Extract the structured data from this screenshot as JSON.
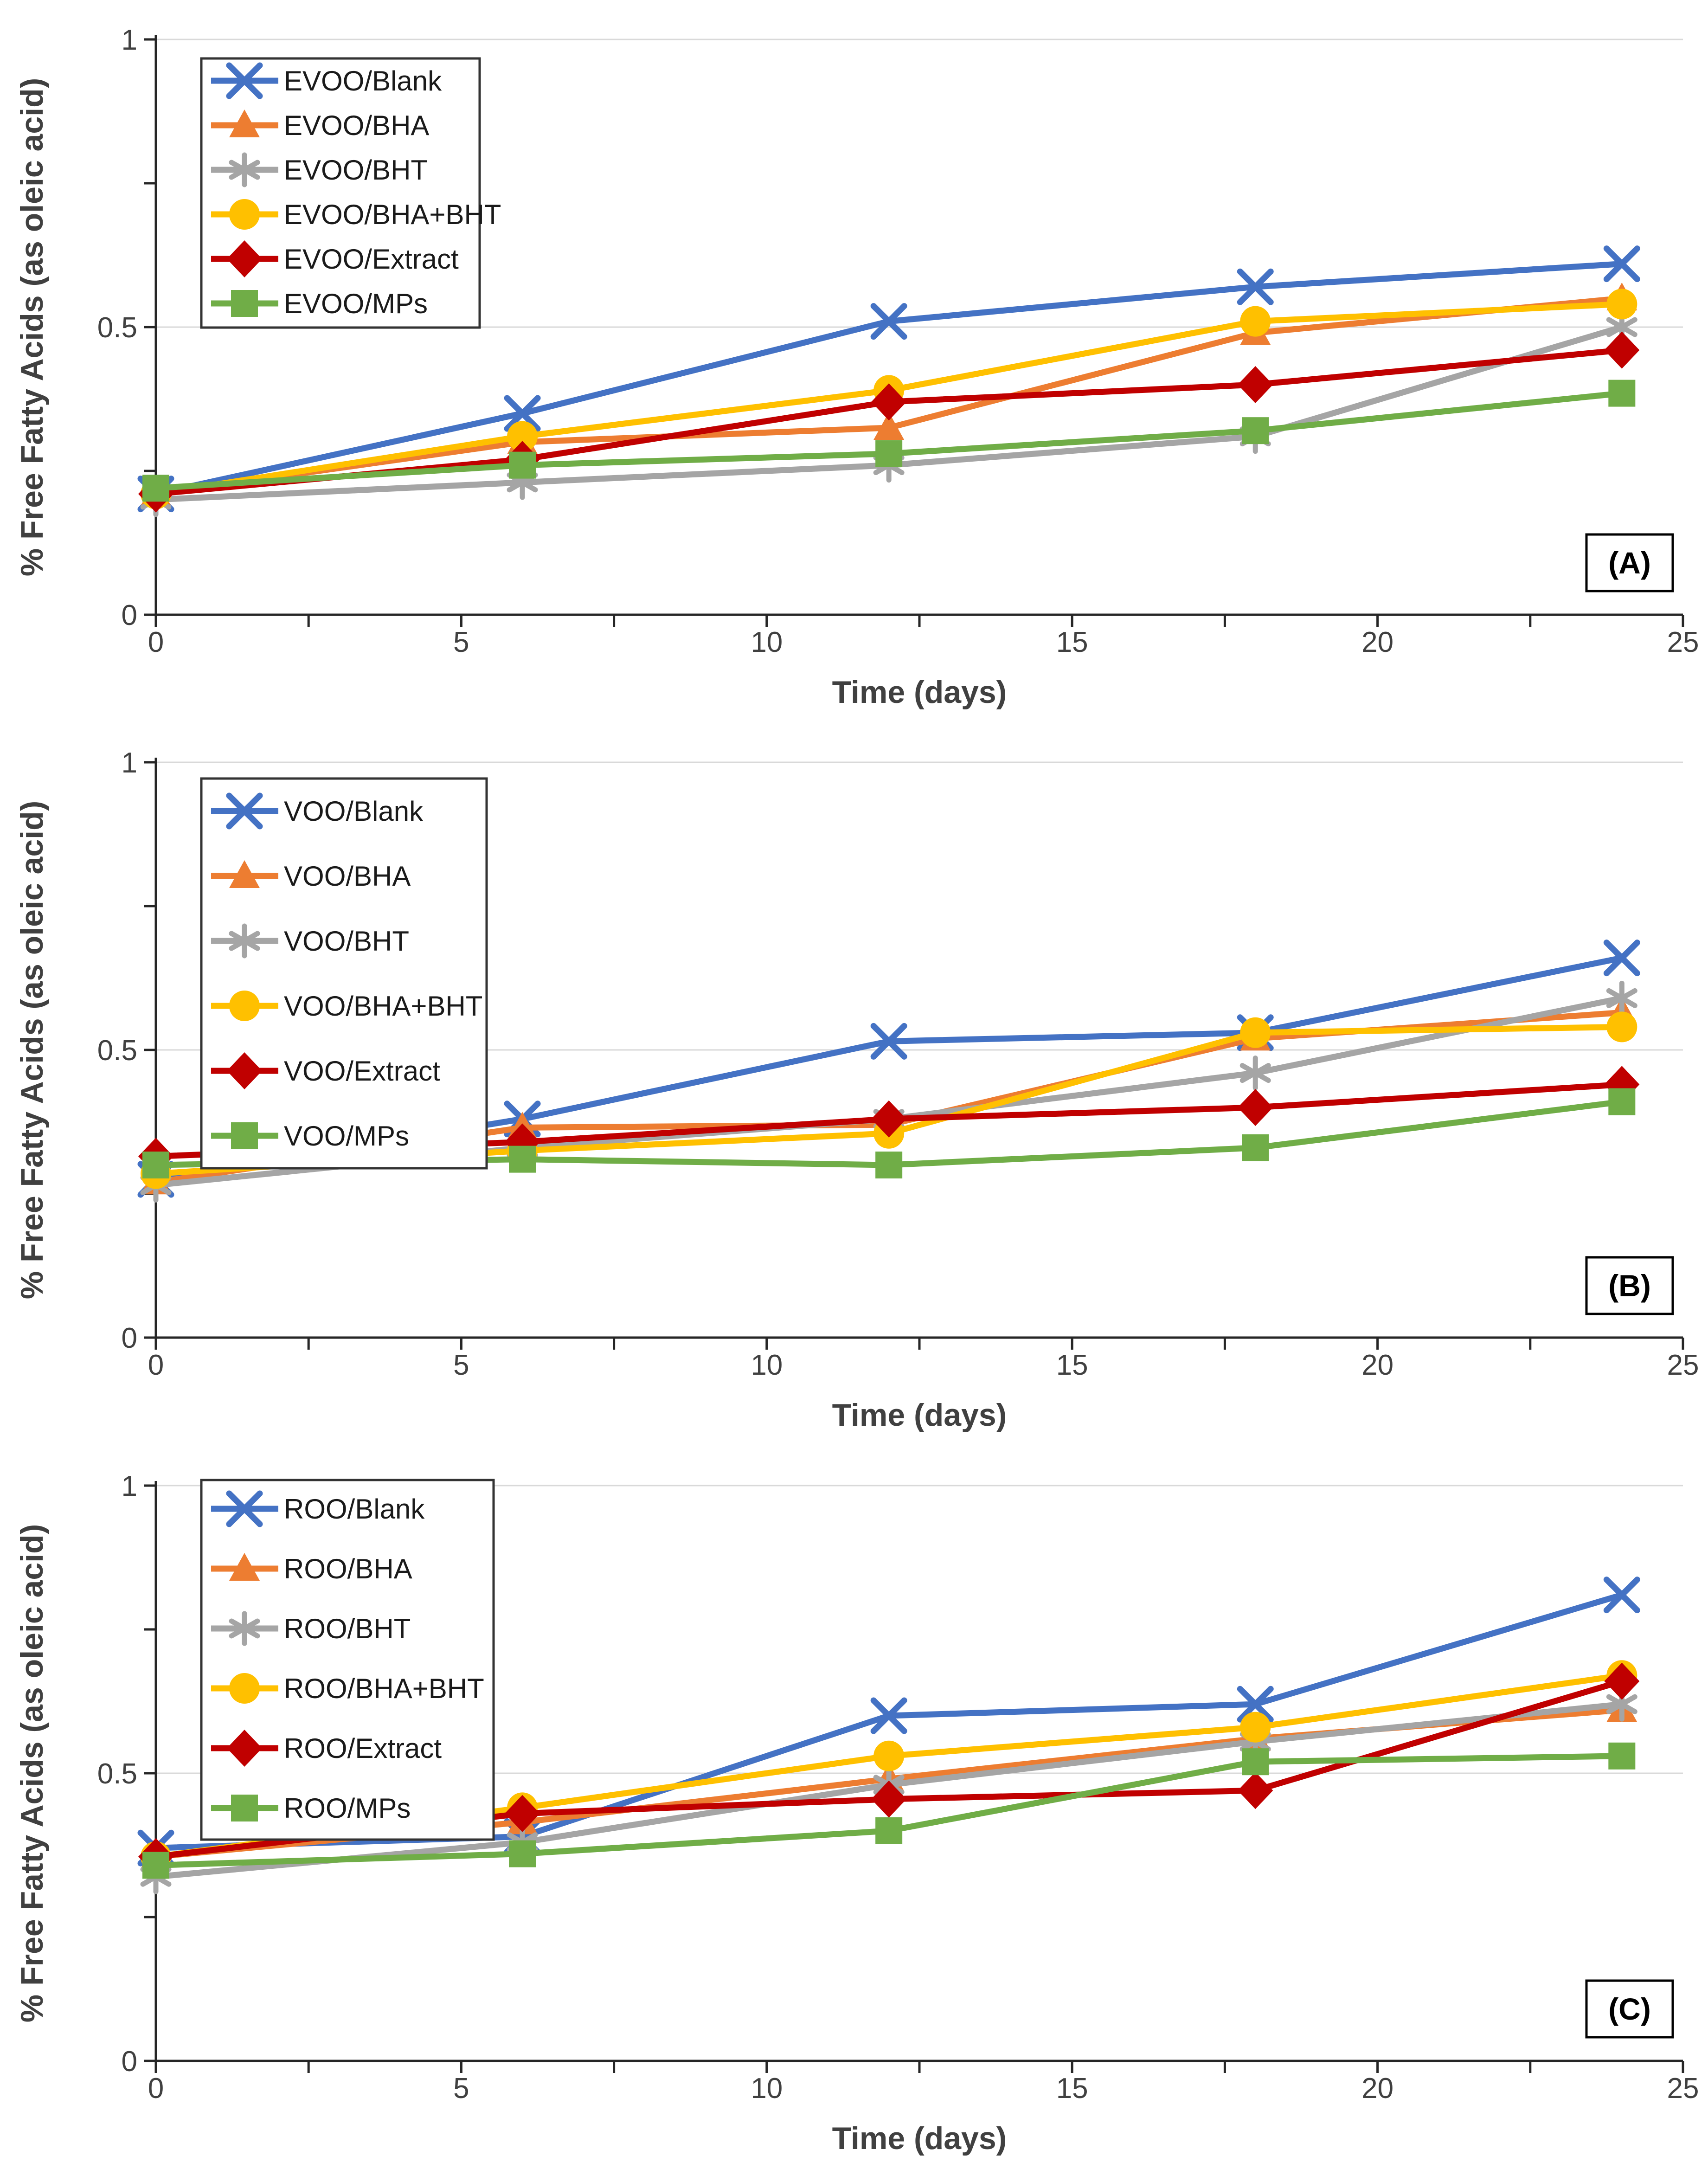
{
  "page": {
    "background": "#FFFFFF"
  },
  "shared_axis": {
    "x_title": "Time (days)",
    "y_title": "% Free Fatty Acids (as oleic acid)",
    "x_tick_labels": [
      "0",
      "5",
      "10",
      "15",
      "20",
      "25"
    ],
    "x_tick_values": [
      0,
      5,
      10,
      15,
      20,
      25
    ],
    "x_minor_tick_step": 2.5,
    "y_tick_labels": [
      "0",
      "0.5",
      "1"
    ],
    "y_tick_values": [
      0,
      0.5,
      1
    ],
    "y_minor_tick_step": 0.25,
    "xlim": [
      0,
      25
    ],
    "ylim": [
      0,
      1
    ],
    "gridlines_y": [
      0.5,
      1
    ],
    "grid_color": "#D9D9D9",
    "axis_color": "#262626",
    "text_color": "#404040",
    "legend_border_color": "#333333"
  },
  "chart_data": [
    {
      "type": "line",
      "panel_label": "(A)",
      "oil": "EVOO",
      "title": "",
      "xlabel": "Time (days)",
      "ylabel": "% Free Fatty Acids (as oleic acid)",
      "xlim": [
        0,
        25
      ],
      "ylim": [
        0,
        1
      ],
      "legend_position": "top-left",
      "grid": "horizontal",
      "x": [
        0,
        6,
        12,
        18,
        24
      ],
      "series": [
        {
          "name": "EVOO/Blank",
          "marker": "x",
          "color": "#4472C4",
          "values": [
            0.21,
            0.35,
            0.51,
            0.57,
            0.61
          ]
        },
        {
          "name": "EVOO/BHA",
          "marker": "triangle",
          "color": "#ED7D31",
          "values": [
            0.21,
            0.3,
            0.325,
            0.49,
            0.55
          ]
        },
        {
          "name": "EVOO/BHT",
          "marker": "asterisk",
          "color": "#A5A5A5",
          "values": [
            0.2,
            0.23,
            0.26,
            0.31,
            0.5
          ]
        },
        {
          "name": "EVOO/BHA+BHT",
          "marker": "circle",
          "color": "#FFC000",
          "values": [
            0.21,
            0.31,
            0.39,
            0.51,
            0.54
          ]
        },
        {
          "name": "EVOO/Extract",
          "marker": "diamond",
          "color": "#C00000",
          "values": [
            0.21,
            0.27,
            0.37,
            0.4,
            0.46
          ]
        },
        {
          "name": "EVOO/MPs",
          "marker": "square",
          "color": "#70AD47",
          "values": [
            0.22,
            0.26,
            0.28,
            0.32,
            0.385
          ]
        }
      ]
    },
    {
      "type": "line",
      "panel_label": "(B)",
      "oil": "VOO",
      "title": "",
      "xlabel": "Time (days)",
      "ylabel": "% Free Fatty Acids (as oleic acid)",
      "xlim": [
        0,
        25
      ],
      "ylim": [
        0,
        1
      ],
      "legend_position": "top-left",
      "grid": "horizontal",
      "x": [
        0,
        6,
        12,
        18,
        24
      ],
      "series": [
        {
          "name": "VOO/Blank",
          "marker": "x",
          "color": "#4472C4",
          "values": [
            0.275,
            0.38,
            0.515,
            0.53,
            0.66
          ]
        },
        {
          "name": "VOO/BHA",
          "marker": "triangle",
          "color": "#ED7D31",
          "values": [
            0.27,
            0.365,
            0.37,
            0.52,
            0.565
          ]
        },
        {
          "name": "VOO/BHT",
          "marker": "asterisk",
          "color": "#A5A5A5",
          "values": [
            0.265,
            0.33,
            0.38,
            0.46,
            0.59
          ]
        },
        {
          "name": "VOO/BHA+BHT",
          "marker": "circle",
          "color": "#FFC000",
          "values": [
            0.285,
            0.325,
            0.355,
            0.53,
            0.54
          ]
        },
        {
          "name": "VOO/Extract",
          "marker": "diamond",
          "color": "#C00000",
          "values": [
            0.315,
            0.34,
            0.38,
            0.4,
            0.44
          ]
        },
        {
          "name": "VOO/MPs",
          "marker": "square",
          "color": "#70AD47",
          "values": [
            0.3,
            0.31,
            0.3,
            0.33,
            0.41
          ]
        }
      ]
    },
    {
      "type": "line",
      "panel_label": "(C)",
      "oil": "ROO",
      "title": "",
      "xlabel": "Time (days)",
      "ylabel": "% Free Fatty Acids (as oleic acid)",
      "xlim": [
        0,
        25
      ],
      "ylim": [
        0,
        1
      ],
      "legend_position": "top-left",
      "grid": "horizontal",
      "x": [
        0,
        6,
        12,
        18,
        24
      ],
      "series": [
        {
          "name": "ROO/Blank",
          "marker": "x",
          "color": "#4472C4",
          "values": [
            0.37,
            0.39,
            0.6,
            0.62,
            0.81
          ]
        },
        {
          "name": "ROO/BHA",
          "marker": "triangle",
          "color": "#ED7D31",
          "values": [
            0.355,
            0.415,
            0.49,
            0.56,
            0.61
          ]
        },
        {
          "name": "ROO/BHT",
          "marker": "asterisk",
          "color": "#A5A5A5",
          "values": [
            0.32,
            0.38,
            0.48,
            0.555,
            0.62
          ]
        },
        {
          "name": "ROO/BHA+BHT",
          "marker": "circle",
          "color": "#FFC000",
          "values": [
            0.355,
            0.44,
            0.53,
            0.58,
            0.67
          ]
        },
        {
          "name": "ROO/Extract",
          "marker": "diamond",
          "color": "#C00000",
          "values": [
            0.355,
            0.43,
            0.455,
            0.47,
            0.66
          ]
        },
        {
          "name": "ROO/MPs",
          "marker": "square",
          "color": "#70AD47",
          "values": [
            0.34,
            0.36,
            0.4,
            0.52,
            0.53
          ]
        }
      ]
    }
  ]
}
